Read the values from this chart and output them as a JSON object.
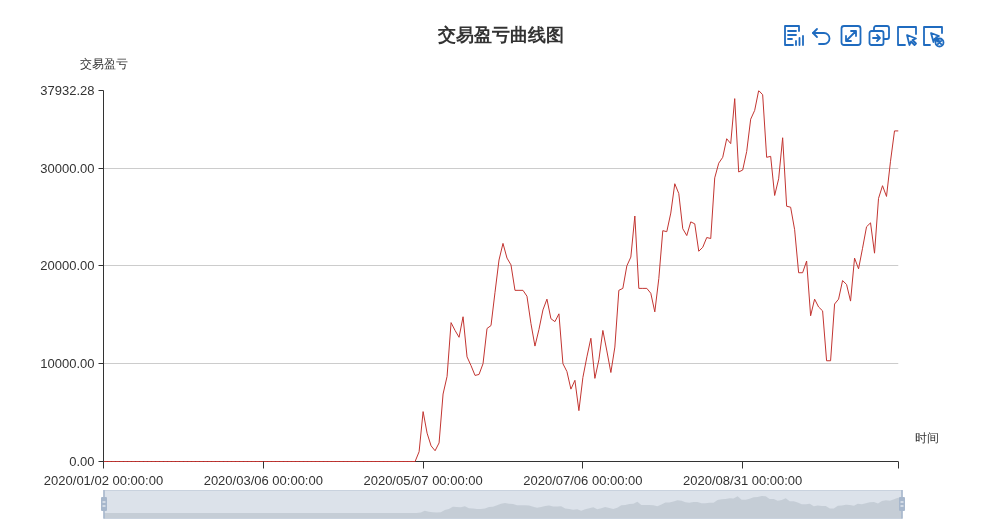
{
  "chart_data": {
    "type": "line",
    "title": "交易盈亏曲线图",
    "xlabel": "时间",
    "ylabel": "交易盈亏",
    "categories": [
      "2020/01/02 00:00:00",
      null,
      null,
      null,
      null,
      null,
      null,
      null,
      null,
      null,
      null,
      null,
      null,
      null,
      null,
      null,
      null,
      null,
      null,
      null,
      null,
      null,
      null,
      null,
      null,
      null,
      null,
      null,
      null,
      null,
      null,
      null,
      null,
      null,
      null,
      null,
      null,
      null,
      null,
      null,
      "2020/03/06 00:00:00",
      null,
      null,
      null,
      null,
      null,
      null,
      null,
      null,
      null,
      null,
      null,
      null,
      null,
      null,
      null,
      null,
      null,
      null,
      null,
      null,
      null,
      null,
      null,
      null,
      null,
      null,
      null,
      null,
      null,
      null,
      null,
      null,
      null,
      null,
      null,
      null,
      null,
      null,
      null,
      "2020/05/07 00:00:00",
      null,
      null,
      null,
      null,
      null,
      null,
      null,
      null,
      null,
      null,
      null,
      null,
      null,
      null,
      null,
      null,
      null,
      null,
      null,
      null,
      null,
      null,
      null,
      null,
      null,
      null,
      null,
      null,
      null,
      null,
      null,
      null,
      null,
      null,
      null,
      null,
      null,
      null,
      null,
      "2020/07/06 00:00:00",
      null,
      null,
      null,
      null,
      null,
      null,
      null,
      null,
      null,
      null,
      null,
      null,
      null,
      null,
      null,
      null,
      null,
      null,
      null,
      null,
      null,
      null,
      null,
      null,
      null,
      null,
      null,
      null,
      null,
      null,
      null,
      null,
      null,
      null,
      null,
      null,
      null,
      null,
      null,
      "2020/08/31 00:00:00",
      null,
      null,
      null,
      null,
      null,
      null,
      null,
      null,
      null,
      null,
      null,
      null,
      null,
      null,
      null,
      null,
      null,
      null,
      null,
      null,
      null,
      null,
      null,
      null,
      null,
      null,
      null,
      null,
      null,
      null,
      null,
      null,
      null,
      null,
      null,
      null,
      null,
      null,
      null
    ],
    "series": [
      {
        "color": "#c23531",
        "values": [
          0,
          0,
          0,
          0,
          0,
          0,
          0,
          0,
          0,
          0,
          0,
          0,
          0,
          0,
          0,
          0,
          0,
          0,
          0,
          0,
          0,
          0,
          0,
          0,
          0,
          0,
          0,
          0,
          0,
          0,
          0,
          0,
          0,
          0,
          0,
          0,
          0,
          0,
          0,
          0,
          0,
          0,
          0,
          0,
          0,
          0,
          0,
          0,
          0,
          0,
          0,
          0,
          0,
          0,
          0,
          0,
          0,
          0,
          0,
          0,
          0,
          0,
          0,
          0,
          0,
          0,
          0,
          0,
          0,
          0,
          0,
          0,
          0,
          0,
          0,
          0,
          0,
          0,
          0,
          1000,
          5100,
          2900,
          1600,
          1100,
          1900,
          6900,
          8700,
          14200,
          13400,
          12700,
          14800,
          10700,
          9800,
          8800,
          8900,
          10000,
          13600,
          13900,
          17300,
          20600,
          22300,
          20800,
          20100,
          17500,
          17500,
          17500,
          16900,
          14100,
          11800,
          13500,
          15500,
          16600,
          14600,
          14300,
          15100,
          10000,
          9200,
          7400,
          8300,
          5200,
          8600,
          10700,
          12600,
          8500,
          10400,
          13400,
          11300,
          9100,
          11700,
          17500,
          17700,
          20000,
          20900,
          25100,
          17700,
          17700,
          17700,
          17200,
          15300,
          18700,
          23600,
          23500,
          25400,
          28400,
          27400,
          23800,
          23100,
          24500,
          24300,
          21500,
          21900,
          22900,
          22800,
          29000,
          30500,
          31100,
          33000,
          32500,
          37100,
          29600,
          29800,
          31700,
          35000,
          35900,
          37932.28,
          37500,
          31100,
          31200,
          27200,
          28900,
          33100,
          26100,
          26000,
          23700,
          19300,
          19300,
          20500,
          14900,
          16600,
          15800,
          15400,
          10300,
          10300,
          16100,
          16600,
          18500,
          18100,
          16400,
          20800,
          19700,
          21800,
          24000,
          24400,
          21300,
          26900,
          28200,
          27100,
          30700,
          33800,
          33800
        ]
      }
    ],
    "ylim": [
      0,
      37932.28
    ],
    "yticks": [
      {
        "value": 0,
        "label": "0.00"
      },
      {
        "value": 10000,
        "label": "10000.00"
      },
      {
        "value": 20000,
        "label": "20000.00"
      },
      {
        "value": 30000,
        "label": "30000.00"
      },
      {
        "value": 37932.28,
        "label": "37932.28"
      }
    ],
    "grid": "y"
  }
}
